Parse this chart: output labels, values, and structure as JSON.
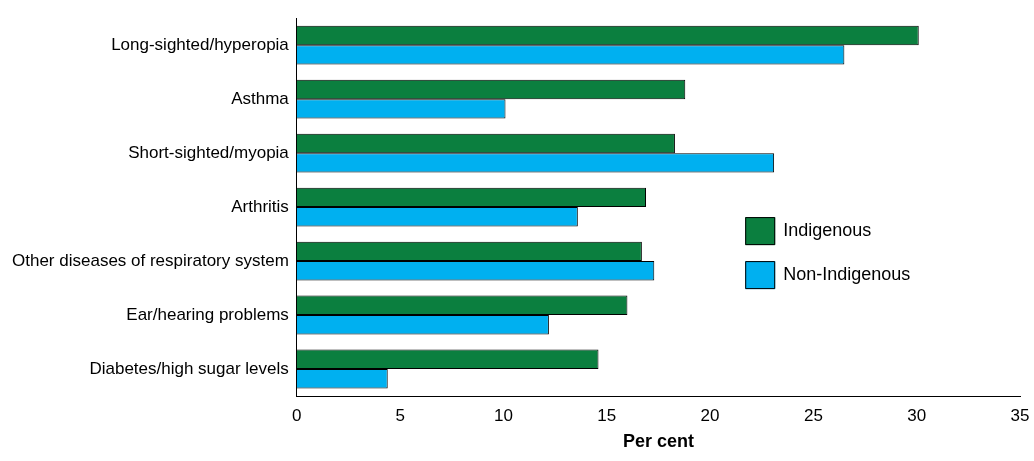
{
  "chart_data": {
    "type": "bar",
    "orientation": "horizontal",
    "xlabel": "Per cent",
    "categories": [
      "Long-sighted/hyperopia",
      "Asthma",
      "Short-sighted/myopia",
      "Arthritis",
      "Other diseases of respiratory system",
      "Ear/hearing problems",
      "Diabetes/high sugar levels"
    ],
    "series": [
      {
        "name": "Indigenous",
        "color": "#0b7f3f",
        "values": [
          30.1,
          18.8,
          18.3,
          16.9,
          16.7,
          16.0,
          14.6
        ]
      },
      {
        "name": "Non-Indigenous",
        "color": "#00b0f0",
        "values": [
          26.5,
          10.1,
          23.1,
          13.6,
          17.3,
          12.2,
          4.4
        ]
      }
    ],
    "xlim": [
      0,
      35
    ],
    "xticks": [
      0,
      5,
      10,
      15,
      20,
      25,
      30,
      35
    ],
    "grid": false,
    "legend": "right"
  }
}
